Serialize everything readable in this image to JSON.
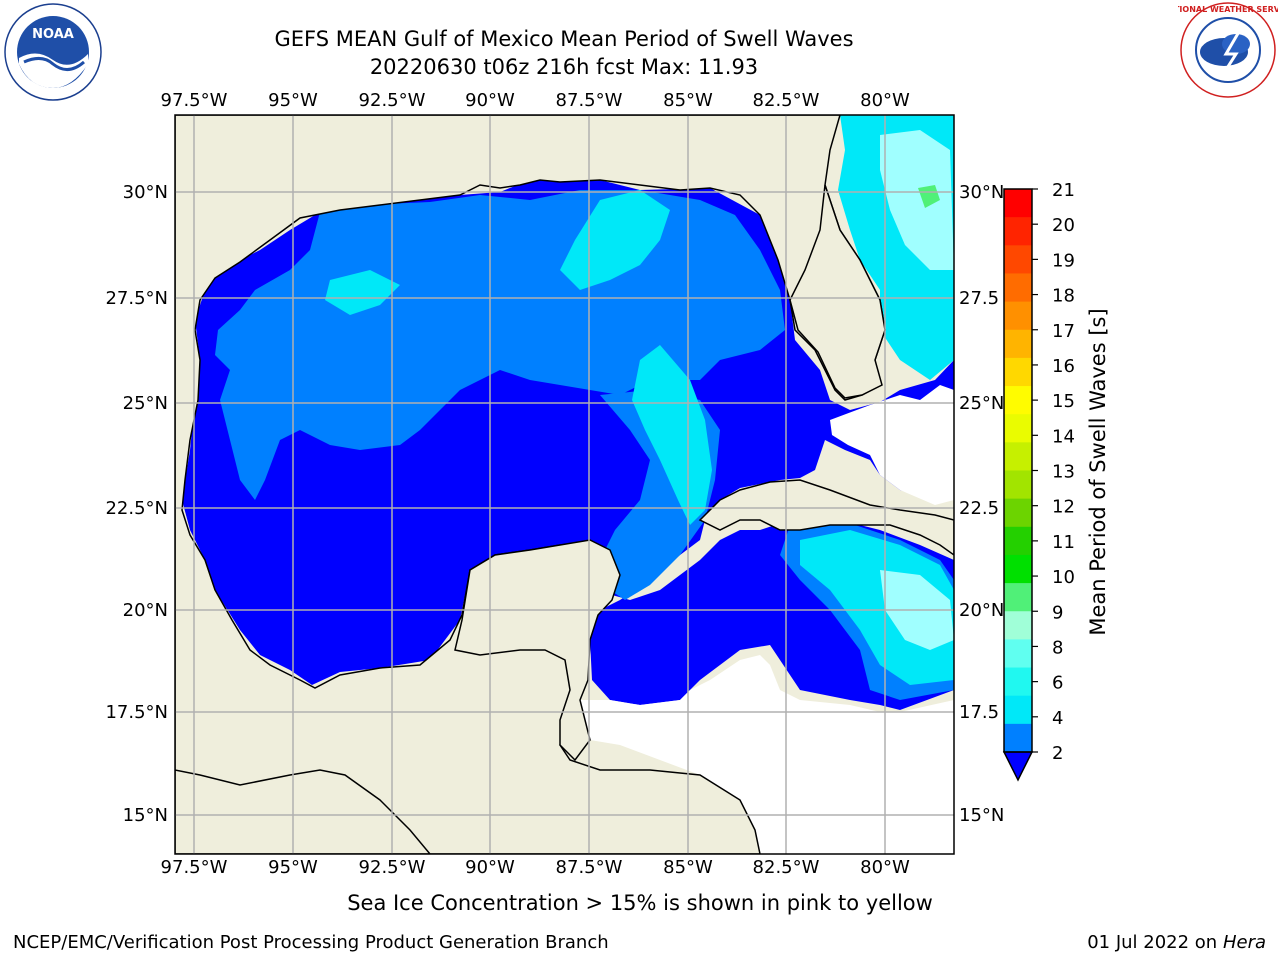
{
  "title": {
    "line1": "GEFS MEAN Gulf of Mexico Mean Period of Swell Waves",
    "line2": "20220630 t06z 216h fcst   Max: 11.93"
  },
  "axes": {
    "lon_labels": [
      "97.5°W",
      "95°W",
      "92.5°W",
      "90°W",
      "87.5°W",
      "85°W",
      "82.5°W",
      "80°W"
    ],
    "lon_values": [
      -97.5,
      -95,
      -92.5,
      -90,
      -87.5,
      -85,
      -82.5,
      -80
    ],
    "lat_labels_left": [
      "30°N",
      "27.5°N",
      "25°N",
      "22.5°N",
      "20°N",
      "17.5°N",
      "15°N"
    ],
    "lat_labels_right": [
      "30°N",
      "27.5",
      "25°N",
      "22.5",
      "20°N",
      "17.5",
      "15°N"
    ],
    "lat_values": [
      30,
      27.5,
      25,
      22.5,
      20,
      17.5,
      15
    ],
    "lon_range": [
      -98,
      -78.3
    ],
    "lat_range": [
      14,
      31.8
    ],
    "grid": true
  },
  "colorbar": {
    "label": "Mean Period of Swell Waves [s]",
    "ticks": [
      "21",
      "20",
      "19",
      "18",
      "17",
      "16",
      "15",
      "14",
      "13",
      "12",
      "11",
      "10",
      "9",
      "8",
      "6",
      "4",
      "2"
    ],
    "colors": [
      "#ff0000",
      "#ff2400",
      "#ff4800",
      "#ff6c00",
      "#ff9000",
      "#ffb400",
      "#ffd800",
      "#fffc00",
      "#eafc00",
      "#c6f000",
      "#a2e400",
      "#6cd400",
      "#24d000",
      "#00e000",
      "#50f078",
      "#a0ffd8",
      "#60fff0",
      "#20f8f0",
      "#00e8f8",
      "#0080ff"
    ],
    "extend_color": "#0000ff"
  },
  "colors": {
    "land": "#efeedc",
    "ocean_deep": "#0000ff",
    "ocean_mid": "#0080ff",
    "ocean_light": "#00e8f8",
    "ocean_pale": "#a0ffff",
    "green": "#50f078",
    "bright_green": "#00e000",
    "grid": "#b0b0b0"
  },
  "notes": {
    "sea_ice": "Sea Ice Concentration > 15% is shown in pink to yellow"
  },
  "footer": {
    "left": "NCEP/EMC/Verification Post Processing Product Generation Branch",
    "right_date": "01 Jul 2022 on ",
    "right_host": "Hera"
  },
  "logos": {
    "left": "noaa-logo",
    "left_text": "NOAA",
    "right": "nws-logo",
    "right_text": "NATIONAL WEATHER SERVICE"
  }
}
